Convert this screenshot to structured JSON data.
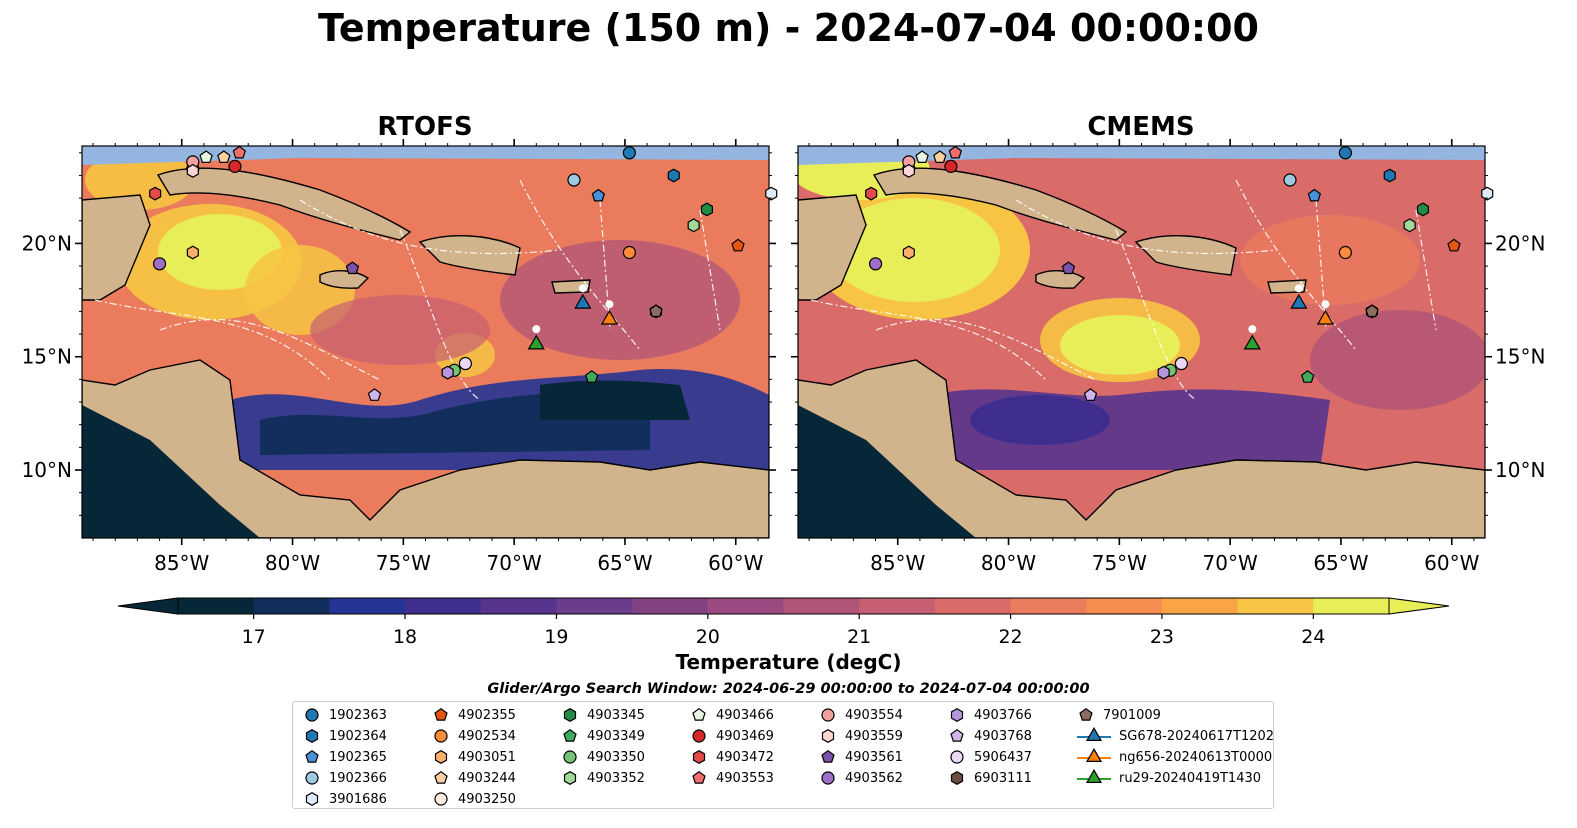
{
  "title": "Temperature (150 m) - 2024-07-04 00:00:00",
  "panels": [
    {
      "title": "RTOFS"
    },
    {
      "title": "CMEMS"
    }
  ],
  "axes": {
    "lon_ticks": [
      "85°W",
      "80°W",
      "75°W",
      "70°W",
      "65°W",
      "60°W"
    ],
    "lat_ticks": [
      "20°N",
      "15°N",
      "10°N"
    ],
    "lon_range": [
      -89.5,
      -58.5
    ],
    "lat_range": [
      7.0,
      24.3
    ]
  },
  "colorbar": {
    "label": "Temperature (degC)",
    "range": [
      16.5,
      24.5
    ],
    "extend": "both",
    "ticks": [
      "17",
      "18",
      "19",
      "20",
      "21",
      "22",
      "23",
      "24"
    ],
    "colors": [
      "#052737",
      "#112e5d",
      "#253494",
      "#3f2e8e",
      "#56348e",
      "#6c3c8c",
      "#834284",
      "#9a4a81",
      "#b05478",
      "#c65f72",
      "#d96b69",
      "#ea7b5c",
      "#f48d4f",
      "#f9a445",
      "#f7c443",
      "#e7ee57"
    ]
  },
  "search_window": "Glider/Argo Search Window: 2024-06-29 00:00:00 to 2024-07-04 00:00:00",
  "legend": [
    {
      "label": "1902363",
      "marker": "circle",
      "color": "#1f77b4"
    },
    {
      "label": "1902364",
      "marker": "hexagon",
      "color": "#1f77b4"
    },
    {
      "label": "1902365",
      "marker": "pentagon",
      "color": "#4a90d9"
    },
    {
      "label": "1902366",
      "marker": "circle",
      "color": "#9ecae1"
    },
    {
      "label": "3901686",
      "marker": "hexagon",
      "color": "#deebf7"
    },
    {
      "label": "4902355",
      "marker": "pentagon",
      "color": "#e6550d"
    },
    {
      "label": "4902534",
      "marker": "circle",
      "color": "#fd8d3c"
    },
    {
      "label": "4903051",
      "marker": "hexagon",
      "color": "#fdae6b"
    },
    {
      "label": "4903244",
      "marker": "pentagon",
      "color": "#fdd0a2"
    },
    {
      "label": "4903250",
      "marker": "circle",
      "color": "#feedde"
    },
    {
      "label": "4903345",
      "marker": "hexagon",
      "color": "#238b45"
    },
    {
      "label": "4903349",
      "marker": "pentagon",
      "color": "#41ab5d"
    },
    {
      "label": "4903350",
      "marker": "circle",
      "color": "#74c476"
    },
    {
      "label": "4903352",
      "marker": "hexagon",
      "color": "#a1d99b"
    },
    {
      "label": "4903466",
      "marker": "pentagon",
      "color": "#e5f5e0"
    },
    {
      "label": "4903469",
      "marker": "circle",
      "color": "#d62728"
    },
    {
      "label": "4903472",
      "marker": "hexagon",
      "color": "#e34a4a"
    },
    {
      "label": "4903553",
      "marker": "pentagon",
      "color": "#f06e6e"
    },
    {
      "label": "4903554",
      "marker": "circle",
      "color": "#f4a0a0"
    },
    {
      "label": "4903559",
      "marker": "hexagon",
      "color": "#fcd5d5"
    },
    {
      "label": "4903561",
      "marker": "pentagon",
      "color": "#7b52ab"
    },
    {
      "label": "4903562",
      "marker": "circle",
      "color": "#9e6fc6"
    },
    {
      "label": "4903766",
      "marker": "hexagon",
      "color": "#b696dc"
    },
    {
      "label": "4903768",
      "marker": "pentagon",
      "color": "#cfb6ea"
    },
    {
      "label": "5906437",
      "marker": "circle",
      "color": "#ead8f5"
    },
    {
      "label": "6903111",
      "marker": "hexagon",
      "color": "#6d4c41"
    },
    {
      "label": "7901009",
      "marker": "pentagon",
      "color": "#8c6d62"
    },
    {
      "label": "SG678-20240617T1202",
      "marker": "triangle",
      "color": "#1f77b4"
    },
    {
      "label": "ng656-20240613T0000",
      "marker": "triangle",
      "color": "#ff7f0e"
    },
    {
      "label": "ru29-20240419T1430",
      "marker": "triangle",
      "color": "#2ca02c"
    }
  ],
  "floats": [
    {
      "id": "1902363",
      "lon": -64.8,
      "lat": 24.0
    },
    {
      "id": "1902364",
      "lon": -62.8,
      "lat": 23.0
    },
    {
      "id": "1902365",
      "lon": -66.2,
      "lat": 22.1
    },
    {
      "id": "1902366",
      "lon": -67.3,
      "lat": 22.8
    },
    {
      "id": "3901686",
      "lon": -58.4,
      "lat": 22.2
    },
    {
      "id": "4902355",
      "lon": -59.9,
      "lat": 19.9
    },
    {
      "id": "4902534",
      "lon": -64.8,
      "lat": 19.6
    },
    {
      "id": "4903051",
      "lon": -84.5,
      "lat": 19.6
    },
    {
      "id": "4903244",
      "lon": -83.1,
      "lat": 23.8
    },
    {
      "id": "4903250",
      "lon": -84.5,
      "lat": 23.3
    },
    {
      "id": "4903345",
      "lon": -61.3,
      "lat": 21.5
    },
    {
      "id": "4903349",
      "lon": -66.5,
      "lat": 14.1
    },
    {
      "id": "4903350",
      "lon": -72.7,
      "lat": 14.4
    },
    {
      "id": "4903352",
      "lon": -61.9,
      "lat": 20.8
    },
    {
      "id": "4903466",
      "lon": -83.9,
      "lat": 23.8
    },
    {
      "id": "4903469",
      "lon": -82.6,
      "lat": 23.4
    },
    {
      "id": "4903472",
      "lon": -86.2,
      "lat": 22.2
    },
    {
      "id": "4903553",
      "lon": -82.4,
      "lat": 24.0
    },
    {
      "id": "4903554",
      "lon": -84.5,
      "lat": 23.6
    },
    {
      "id": "4903559",
      "lon": -84.5,
      "lat": 23.2
    },
    {
      "id": "4903561",
      "lon": -77.3,
      "lat": 18.9
    },
    {
      "id": "4903562",
      "lon": -86.0,
      "lat": 19.1
    },
    {
      "id": "4903766",
      "lon": -73.0,
      "lat": 14.3
    },
    {
      "id": "4903768",
      "lon": -76.3,
      "lat": 13.3
    },
    {
      "id": "5906437",
      "lon": -72.2,
      "lat": 14.7
    },
    {
      "id": "6903111",
      "lon": -63.6,
      "lat": 17.0
    },
    {
      "id": "7901009",
      "lon": -63.6,
      "lat": 17.0
    }
  ],
  "gliders": [
    {
      "id": "SG678-20240617T1202",
      "lon": -66.9,
      "lat": 17.4
    },
    {
      "id": "ng656-20240613T0000",
      "lon": -65.7,
      "lat": 16.7
    },
    {
      "id": "ru29-20240419T1430",
      "lon": -69.0,
      "lat": 15.6
    }
  ]
}
